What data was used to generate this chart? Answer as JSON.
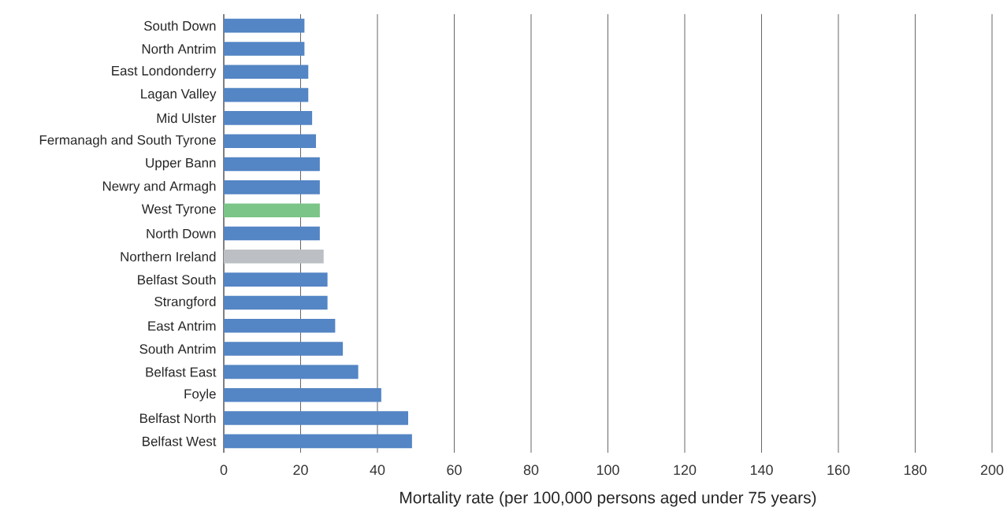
{
  "chart_data": {
    "type": "bar",
    "orientation": "horizontal",
    "xlabel": "Mortality rate (per 100,000 persons aged under 75 years)",
    "categories": [
      "South Down",
      "North Antrim",
      "East Londonderry",
      "Lagan Valley",
      "Mid Ulster",
      "Fermanagh and South Tyrone",
      "Upper Bann",
      "Newry and Armagh",
      "West Tyrone",
      "North Down",
      "Northern Ireland",
      "Belfast South",
      "Strangford",
      "East Antrim",
      "South Antrim",
      "Belfast East",
      "Foyle",
      "Belfast North",
      "Belfast West"
    ],
    "values": [
      21,
      21,
      22,
      22,
      23,
      24,
      25,
      25,
      25,
      25,
      26,
      27,
      27,
      29,
      31,
      35,
      41,
      48,
      49
    ],
    "colors": [
      "#5485c4",
      "#5485c4",
      "#5485c4",
      "#5485c4",
      "#5485c4",
      "#5485c4",
      "#5485c4",
      "#5485c4",
      "#7ac587",
      "#5485c4",
      "#bcc0c4",
      "#5485c4",
      "#5485c4",
      "#5485c4",
      "#5485c4",
      "#5485c4",
      "#5485c4",
      "#5485c4",
      "#5485c4"
    ],
    "xlim": [
      0,
      200
    ],
    "xticks": [
      0,
      20,
      40,
      60,
      80,
      100,
      120,
      140,
      160,
      180,
      200
    ],
    "grid": "x"
  }
}
